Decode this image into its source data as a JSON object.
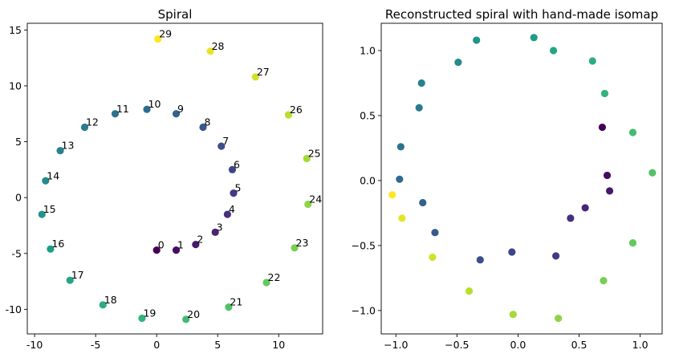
{
  "chart_data": [
    {
      "type": "scatter",
      "title": "Spiral",
      "xlim": [
        -10.6,
        13.6
      ],
      "ylim": [
        -12.2,
        15.6
      ],
      "xticks": [
        -10,
        -5,
        0,
        5,
        10
      ],
      "yticks": [
        -10,
        -5,
        0,
        5,
        10,
        15
      ],
      "grid": false,
      "colormap": "viridis",
      "points": [
        {
          "label": "0",
          "x": 0.0,
          "y": -4.7
        },
        {
          "label": "1",
          "x": 1.6,
          "y": -4.7
        },
        {
          "label": "2",
          "x": 3.2,
          "y": -4.2
        },
        {
          "label": "3",
          "x": 4.8,
          "y": -3.1
        },
        {
          "label": "4",
          "x": 5.8,
          "y": -1.5
        },
        {
          "label": "5",
          "x": 6.3,
          "y": 0.4
        },
        {
          "label": "6",
          "x": 6.2,
          "y": 2.5
        },
        {
          "label": "7",
          "x": 5.3,
          "y": 4.6
        },
        {
          "label": "8",
          "x": 3.8,
          "y": 6.3
        },
        {
          "label": "9",
          "x": 1.6,
          "y": 7.5
        },
        {
          "label": "10",
          "x": -0.8,
          "y": 7.9
        },
        {
          "label": "11",
          "x": -3.4,
          "y": 7.5
        },
        {
          "label": "12",
          "x": -5.9,
          "y": 6.3
        },
        {
          "label": "13",
          "x": -7.9,
          "y": 4.2
        },
        {
          "label": "14",
          "x": -9.1,
          "y": 1.5
        },
        {
          "label": "15",
          "x": -9.4,
          "y": -1.5
        },
        {
          "label": "16",
          "x": -8.7,
          "y": -4.6
        },
        {
          "label": "17",
          "x": -7.1,
          "y": -7.4
        },
        {
          "label": "18",
          "x": -4.4,
          "y": -9.6
        },
        {
          "label": "19",
          "x": -1.2,
          "y": -10.8
        },
        {
          "label": "20",
          "x": 2.4,
          "y": -10.9
        },
        {
          "label": "21",
          "x": 5.9,
          "y": -9.8
        },
        {
          "label": "22",
          "x": 9.0,
          "y": -7.6
        },
        {
          "label": "23",
          "x": 11.3,
          "y": -4.5
        },
        {
          "label": "24",
          "x": 12.4,
          "y": -0.6
        },
        {
          "label": "25",
          "x": 12.3,
          "y": 3.5
        },
        {
          "label": "26",
          "x": 10.8,
          "y": 7.4
        },
        {
          "label": "27",
          "x": 8.1,
          "y": 10.8
        },
        {
          "label": "28",
          "x": 4.4,
          "y": 13.1
        },
        {
          "label": "29",
          "x": 0.1,
          "y": 14.2
        }
      ]
    },
    {
      "type": "scatter",
      "title": "Reconstructed spiral with hand-made isomap",
      "xlim": [
        -1.12,
        1.18
      ],
      "ylim": [
        -1.18,
        1.21
      ],
      "xticks": [
        -1.0,
        -0.5,
        0.0,
        0.5,
        1.0
      ],
      "xtick_labels": [
        "−1.0",
        "−0.5",
        "0.0",
        "0.5",
        "1.0"
      ],
      "yticks": [
        -1.0,
        -0.5,
        0.0,
        0.5,
        1.0
      ],
      "ytick_labels": [
        "−1.0",
        "−0.5",
        "0.0",
        "0.5",
        "1.0"
      ],
      "grid": false,
      "colormap": "viridis",
      "points": [
        {
          "x": 0.69,
          "y": 0.41
        },
        {
          "x": 0.73,
          "y": 0.04
        },
        {
          "x": 0.75,
          "y": -0.08
        },
        {
          "x": 0.55,
          "y": -0.21
        },
        {
          "x": 0.43,
          "y": -0.29
        },
        {
          "x": 0.31,
          "y": -0.58
        },
        {
          "x": -0.05,
          "y": -0.55
        },
        {
          "x": -0.31,
          "y": -0.61
        },
        {
          "x": -0.68,
          "y": -0.4
        },
        {
          "x": -0.78,
          "y": -0.17
        },
        {
          "x": -0.97,
          "y": 0.01
        },
        {
          "x": -0.96,
          "y": 0.26
        },
        {
          "x": -0.81,
          "y": 0.56
        },
        {
          "x": -0.79,
          "y": 0.75
        },
        {
          "x": -0.49,
          "y": 0.91
        },
        {
          "x": -0.34,
          "y": 1.08
        },
        {
          "x": 0.13,
          "y": 1.1
        },
        {
          "x": 0.29,
          "y": 1.0
        },
        {
          "x": 0.61,
          "y": 0.92
        },
        {
          "x": 0.71,
          "y": 0.67
        },
        {
          "x": 0.94,
          "y": 0.37
        },
        {
          "x": 1.1,
          "y": 0.06
        },
        {
          "x": 0.94,
          "y": -0.48
        },
        {
          "x": 0.7,
          "y": -0.77
        },
        {
          "x": 0.33,
          "y": -1.06
        },
        {
          "x": -0.04,
          "y": -1.03
        },
        {
          "x": -0.4,
          "y": -0.85
        },
        {
          "x": -0.7,
          "y": -0.59
        },
        {
          "x": -0.95,
          "y": -0.29
        },
        {
          "x": -1.03,
          "y": -0.11
        }
      ]
    }
  ]
}
